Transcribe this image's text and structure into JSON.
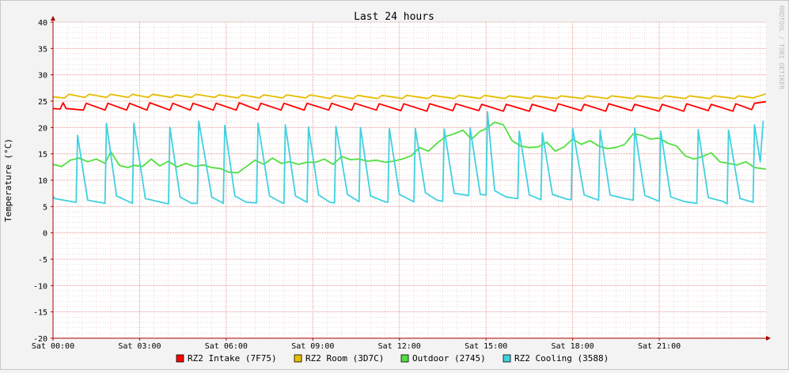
{
  "chart_data": {
    "type": "line",
    "title": "Last 24 hours",
    "ylabel": "Temperature (°C)",
    "watermark": "RRDTOOL / TOBI OETIKER",
    "ylim": [
      -20,
      40
    ],
    "xlim_hours": [
      0,
      24.7
    ],
    "y_ticks": [
      -20,
      -15,
      -10,
      -5,
      0,
      5,
      10,
      15,
      20,
      25,
      30,
      35,
      40
    ],
    "x_ticks": [
      {
        "hour": 0,
        "label": "Sat 00:00"
      },
      {
        "hour": 3,
        "label": "Sat 03:00"
      },
      {
        "hour": 6,
        "label": "Sat 06:00"
      },
      {
        "hour": 9,
        "label": "Sat 09:00"
      },
      {
        "hour": 12,
        "label": "Sat 12:00"
      },
      {
        "hour": 15,
        "label": "Sat 15:00"
      },
      {
        "hour": 18,
        "label": "Sat 18:00"
      },
      {
        "hour": 21,
        "label": "Sat 21:00"
      }
    ],
    "grid": true,
    "legend_position": "bottom",
    "x_unit": "hours since Sat 00:00",
    "series": [
      {
        "name": "RZ2 Intake (7F75)",
        "color": "#FF0000",
        "x": [
          0,
          0.25,
          0.35,
          0.45,
          1.05,
          1.15,
          1.8,
          1.9,
          2.55,
          2.65,
          3.25,
          3.35,
          4.05,
          4.15,
          4.75,
          4.85,
          5.55,
          5.65,
          6.35,
          6.45,
          7.1,
          7.2,
          7.9,
          8.0,
          8.7,
          8.8,
          9.55,
          9.65,
          10.35,
          10.45,
          11.2,
          11.3,
          12.05,
          12.15,
          12.95,
          13.05,
          13.85,
          13.95,
          14.75,
          14.85,
          15.6,
          15.7,
          16.5,
          16.6,
          17.4,
          17.5,
          18.3,
          18.4,
          19.15,
          19.25,
          20.05,
          20.15,
          21.0,
          21.1,
          21.85,
          21.95,
          22.7,
          22.8,
          23.55,
          23.65,
          24.2,
          24.3,
          24.7
        ],
        "values": [
          23.6,
          23.5,
          24.7,
          23.6,
          23.3,
          24.6,
          23.3,
          24.6,
          23.3,
          24.6,
          23.3,
          24.7,
          23.3,
          24.6,
          23.3,
          24.6,
          23.3,
          24.6,
          23.3,
          24.7,
          23.3,
          24.6,
          23.3,
          24.6,
          23.3,
          24.6,
          23.3,
          24.6,
          23.3,
          24.6,
          23.3,
          24.5,
          23.2,
          24.5,
          23.1,
          24.5,
          23.2,
          24.5,
          23.2,
          24.4,
          23.1,
          24.4,
          23.1,
          24.4,
          23.1,
          24.5,
          23.2,
          24.4,
          23.1,
          24.5,
          23.2,
          24.4,
          23.1,
          24.4,
          23.1,
          24.5,
          23.2,
          24.4,
          23.1,
          24.5,
          23.4,
          24.6,
          24.9
        ]
      },
      {
        "name": "RZ2 Room (3D7C)",
        "color": "#E5BE00",
        "x": [
          0,
          0.4,
          0.55,
          1.1,
          1.25,
          1.85,
          2.0,
          2.6,
          2.75,
          3.3,
          3.45,
          4.1,
          4.25,
          4.8,
          4.95,
          5.6,
          5.75,
          6.4,
          6.55,
          7.15,
          7.3,
          7.95,
          8.1,
          8.75,
          8.9,
          9.6,
          9.75,
          10.4,
          10.55,
          11.25,
          11.4,
          12.1,
          12.25,
          13.0,
          13.15,
          13.9,
          14.05,
          14.8,
          14.95,
          15.65,
          15.8,
          16.55,
          16.7,
          17.45,
          17.6,
          18.35,
          18.5,
          19.2,
          19.35,
          20.1,
          20.25,
          21.05,
          21.2,
          21.9,
          22.05,
          22.75,
          22.9,
          23.6,
          23.75,
          24.25,
          24.7
        ],
        "values": [
          25.8,
          25.6,
          26.3,
          25.7,
          26.3,
          25.7,
          26.3,
          25.7,
          26.3,
          25.7,
          26.3,
          25.7,
          26.2,
          25.7,
          26.3,
          25.7,
          26.2,
          25.6,
          26.2,
          25.6,
          26.2,
          25.6,
          26.2,
          25.6,
          26.2,
          25.5,
          26.1,
          25.5,
          26.1,
          25.5,
          26.1,
          25.5,
          26.1,
          25.5,
          26.1,
          25.5,
          26.1,
          25.5,
          26.1,
          25.5,
          26.0,
          25.5,
          26.0,
          25.5,
          26.0,
          25.5,
          26.0,
          25.5,
          26.0,
          25.5,
          26.0,
          25.5,
          26.0,
          25.5,
          26.0,
          25.5,
          26.0,
          25.5,
          26.0,
          25.6,
          26.4
        ]
      },
      {
        "name": "Outdoor (2745)",
        "color": "#4FE03C",
        "x": [
          0,
          0.3,
          0.6,
          0.9,
          1.2,
          1.5,
          1.8,
          2.0,
          2.3,
          2.6,
          2.8,
          3.1,
          3.4,
          3.7,
          4.0,
          4.3,
          4.6,
          4.9,
          5.2,
          5.5,
          5.8,
          6.1,
          6.4,
          6.7,
          7.0,
          7.3,
          7.6,
          7.9,
          8.2,
          8.5,
          8.8,
          9.1,
          9.4,
          9.7,
          10.0,
          10.3,
          10.6,
          10.9,
          11.2,
          11.5,
          11.8,
          12.1,
          12.4,
          12.7,
          13.0,
          13.3,
          13.6,
          13.9,
          14.2,
          14.5,
          14.8,
          15.0,
          15.3,
          15.6,
          15.9,
          16.2,
          16.5,
          16.8,
          17.1,
          17.4,
          17.7,
          18.0,
          18.3,
          18.6,
          18.9,
          19.2,
          19.5,
          19.8,
          20.1,
          20.4,
          20.7,
          21.0,
          21.3,
          21.6,
          21.9,
          22.2,
          22.5,
          22.8,
          23.1,
          23.4,
          23.7,
          24.0,
          24.3,
          24.7
        ],
        "values": [
          13.0,
          12.6,
          13.8,
          14.2,
          13.5,
          14.0,
          13.2,
          15.4,
          12.8,
          12.4,
          12.8,
          12.6,
          14.0,
          12.7,
          13.6,
          12.5,
          13.2,
          12.6,
          12.9,
          12.4,
          12.2,
          11.5,
          11.4,
          12.6,
          13.8,
          13.0,
          14.2,
          13.2,
          13.5,
          13.0,
          13.4,
          13.4,
          14.0,
          13.0,
          14.5,
          13.9,
          14.0,
          13.6,
          13.8,
          13.4,
          13.6,
          14.0,
          14.6,
          16.2,
          15.5,
          17.0,
          18.3,
          18.8,
          19.5,
          17.8,
          19.3,
          19.8,
          21.0,
          20.5,
          17.5,
          16.5,
          16.2,
          16.3,
          17.2,
          15.5,
          16.3,
          17.8,
          16.8,
          17.5,
          16.5,
          16.0,
          16.2,
          16.8,
          18.8,
          18.5,
          17.8,
          18.0,
          17.0,
          16.5,
          14.6,
          14.0,
          14.5,
          15.2,
          13.5,
          13.2,
          12.9,
          13.5,
          12.4,
          12.1
        ]
      },
      {
        "name": "RZ2 Cooling (3588)",
        "color": "#40D1E0",
        "x": [
          0,
          0.05,
          0.8,
          0.85,
          1.2,
          1.8,
          1.85,
          2.2,
          2.6,
          2.75,
          2.8,
          3.2,
          4.0,
          4.05,
          4.4,
          4.8,
          5.0,
          5.05,
          5.5,
          5.9,
          5.95,
          6.3,
          6.7,
          7.05,
          7.1,
          7.5,
          7.9,
          8.0,
          8.05,
          8.4,
          8.8,
          8.85,
          9.2,
          9.6,
          9.75,
          9.8,
          10.2,
          10.6,
          10.65,
          11.0,
          11.5,
          11.6,
          11.65,
          12.0,
          12.5,
          12.55,
          12.9,
          13.3,
          13.5,
          13.55,
          13.9,
          14.4,
          14.45,
          14.8,
          15.0,
          15.05,
          15.3,
          15.7,
          16.1,
          16.15,
          16.5,
          16.9,
          16.95,
          17.3,
          17.8,
          17.95,
          18.0,
          18.4,
          18.9,
          18.95,
          19.3,
          19.8,
          20.1,
          20.15,
          20.5,
          21.0,
          21.05,
          21.4,
          21.9,
          22.3,
          22.35,
          22.7,
          23.2,
          23.35,
          23.4,
          23.8,
          24.25,
          24.3,
          24.5,
          24.6
        ],
        "values": [
          7.0,
          6.5,
          5.8,
          18.5,
          6.2,
          5.6,
          20.8,
          7.0,
          6.0,
          5.6,
          20.8,
          6.5,
          5.5,
          20.0,
          6.8,
          5.6,
          5.6,
          21.2,
          6.8,
          5.6,
          20.4,
          7.0,
          5.8,
          5.7,
          20.8,
          7.0,
          5.8,
          5.6,
          20.5,
          7.0,
          5.8,
          20.1,
          7.2,
          5.8,
          5.7,
          20.2,
          7.3,
          5.9,
          20.0,
          7.0,
          5.9,
          5.8,
          19.8,
          7.3,
          5.9,
          19.8,
          7.6,
          6.2,
          6.0,
          19.7,
          7.5,
          7.1,
          19.9,
          7.3,
          7.2,
          23.0,
          8.0,
          6.8,
          6.5,
          19.3,
          7.2,
          6.3,
          19.0,
          7.3,
          6.4,
          6.3,
          19.8,
          7.2,
          6.2,
          19.5,
          7.2,
          6.5,
          6.2,
          19.9,
          7.1,
          6.0,
          19.3,
          6.8,
          5.9,
          5.6,
          19.6,
          6.7,
          6.0,
          5.5,
          19.5,
          6.5,
          5.8,
          20.5,
          13.5,
          21.3
        ]
      }
    ]
  }
}
